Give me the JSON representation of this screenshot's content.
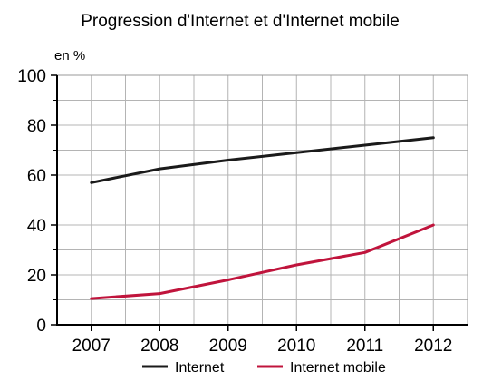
{
  "chart_data": {
    "type": "line",
    "title": "Progression d'Internet et d'Internet mobile",
    "ylabel": "en %",
    "xlabel": "",
    "x": [
      "2007",
      "2008",
      "2009",
      "2010",
      "2011",
      "2012"
    ],
    "ylim": [
      0,
      100
    ],
    "yticks": [
      "0",
      "20",
      "40",
      "60",
      "80",
      "100"
    ],
    "grid": true,
    "legend": "bottom",
    "series": [
      {
        "name": "Internet",
        "color": "#1a1a1a",
        "values": [
          57,
          62.5,
          66,
          69,
          72,
          75
        ]
      },
      {
        "name": "Internet mobile",
        "color": "#c0143c",
        "values": [
          10.5,
          12.5,
          18,
          24,
          29,
          40
        ]
      }
    ]
  }
}
